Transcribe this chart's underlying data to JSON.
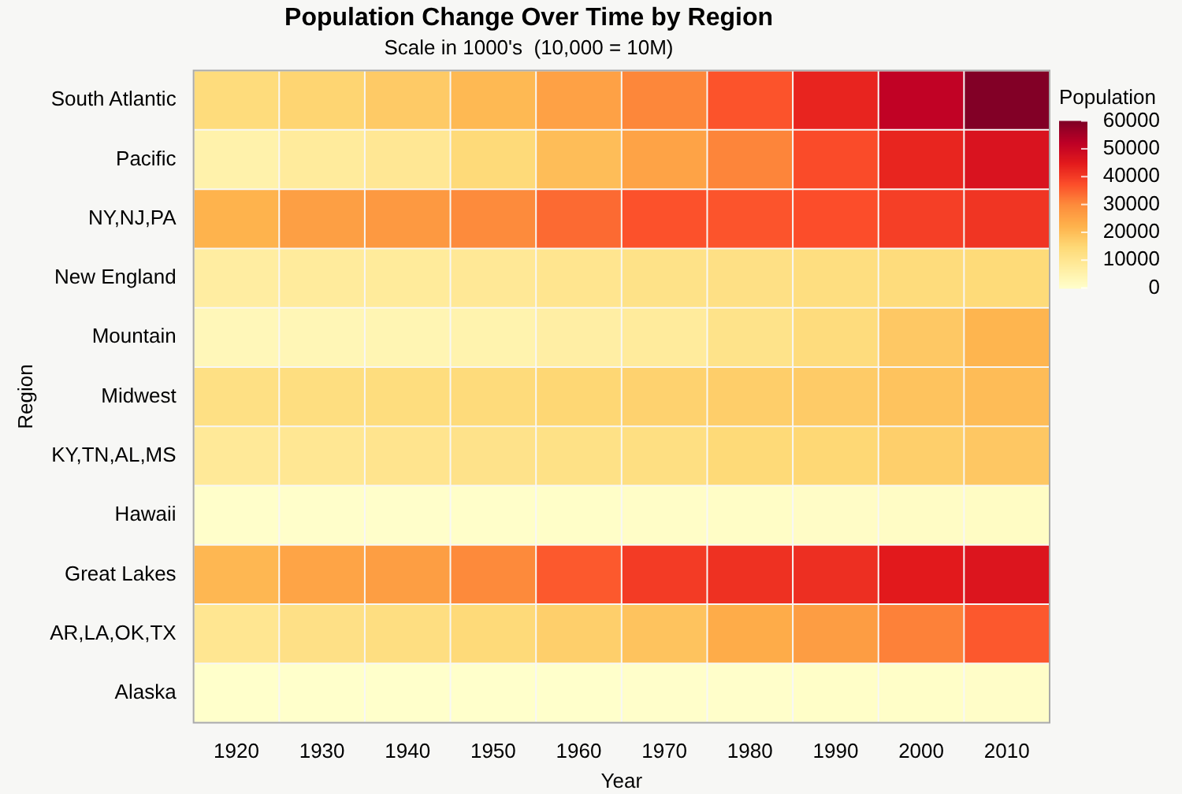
{
  "chart_data": {
    "type": "heatmap",
    "title": "Population Change Over Time by Region",
    "subtitle": "Scale in 1000's  (10,000 = 10M)",
    "xlabel": "Year",
    "ylabel": "Region",
    "clabel": "Population",
    "categories": [
      "1920",
      "1930",
      "1940",
      "1950",
      "1960",
      "1970",
      "1980",
      "1990",
      "2000",
      "2010"
    ],
    "y_categories": [
      "South Atlantic",
      "Pacific",
      "NY,NJ,PA",
      "New England",
      "Mountain",
      "Midwest",
      "KY,TN,AL,MS",
      "Hawaii",
      "Great Lakes",
      "AR,LA,OK,TX",
      "Alaska"
    ],
    "cells": [
      [
        14000,
        15800,
        17800,
        21200,
        26000,
        30700,
        36900,
        43600,
        51800,
        59800
      ],
      [
        5600,
        8200,
        9700,
        14500,
        20300,
        25500,
        31000,
        38000,
        43400,
        47000
      ],
      [
        22300,
        26300,
        27500,
        30200,
        34200,
        37200,
        36800,
        37600,
        39700,
        41100
      ],
      [
        7400,
        8200,
        8400,
        9300,
        10500,
        11800,
        12300,
        13200,
        13900,
        14400
      ],
      [
        3300,
        3700,
        4200,
        5100,
        6900,
        8300,
        11400,
        13700,
        18200,
        22000
      ],
      [
        12500,
        13300,
        13500,
        14100,
        15400,
        16300,
        17200,
        17700,
        19200,
        20500
      ],
      [
        8900,
        9900,
        10800,
        11500,
        12100,
        12800,
        14700,
        15200,
        17000,
        18400
      ],
      [
        300,
        400,
        400,
        500,
        600,
        800,
        1000,
        1100,
        1200,
        1400
      ],
      [
        21500,
        25300,
        26600,
        30400,
        36200,
        40300,
        41700,
        42000,
        45200,
        46400
      ],
      [
        10200,
        12200,
        13100,
        14500,
        17000,
        19300,
        23700,
        26700,
        31400,
        36300
      ],
      [
        100,
        100,
        100,
        100,
        200,
        300,
        400,
        600,
        600,
        700
      ]
    ],
    "clim": [
      0,
      60000
    ],
    "cticks": [
      0,
      10000,
      20000,
      30000,
      40000,
      50000,
      60000
    ]
  }
}
